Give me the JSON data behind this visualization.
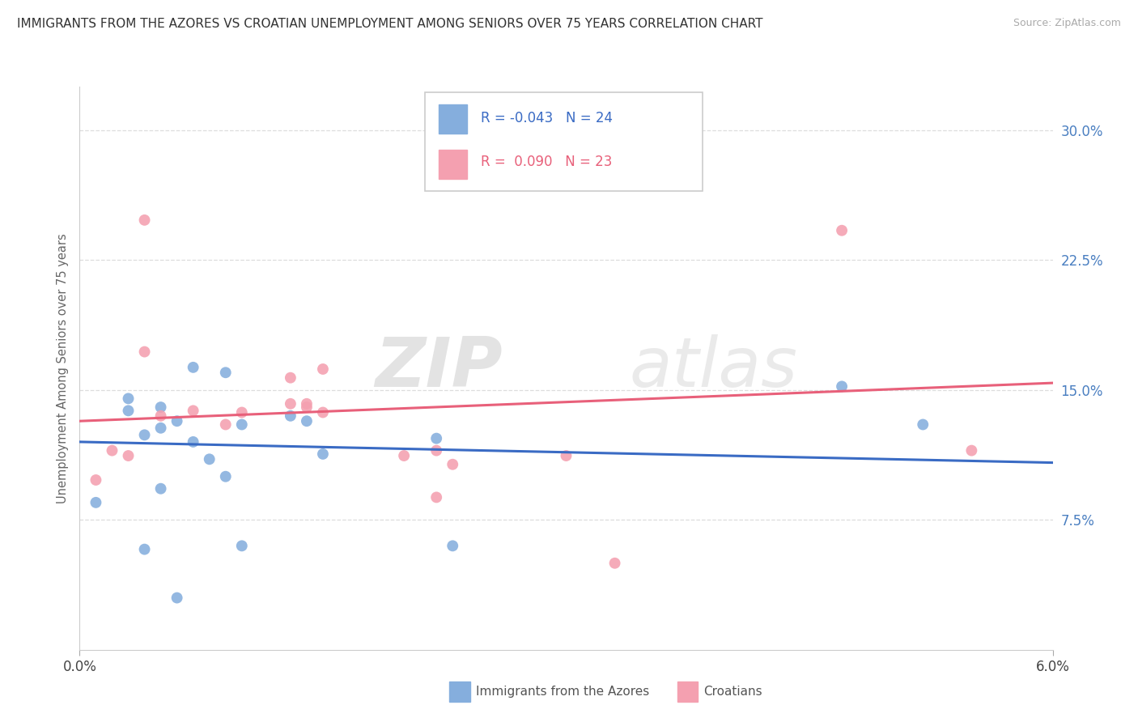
{
  "title": "IMMIGRANTS FROM THE AZORES VS CROATIAN UNEMPLOYMENT AMONG SENIORS OVER 75 YEARS CORRELATION CHART",
  "source": "Source: ZipAtlas.com",
  "ylabel": "Unemployment Among Seniors over 75 years",
  "xlabel_blue": "Immigrants from the Azores",
  "xlabel_pink": "Croatians",
  "watermark_zip": "ZIP",
  "watermark_atlas": "atlas",
  "legend_blue_R": "-0.043",
  "legend_blue_N": "24",
  "legend_pink_R": " 0.090",
  "legend_pink_N": "23",
  "blue_scatter_color": "#85AEDD",
  "pink_scatter_color": "#F4A0B0",
  "blue_line_color": "#3A6BC4",
  "pink_line_color": "#E8607A",
  "ytick_color": "#4A7FC1",
  "xmin": 0.0,
  "xmax": 0.06,
  "ymin": 0.0,
  "ymax": 0.325,
  "yticks": [
    0.075,
    0.15,
    0.225,
    0.3
  ],
  "ytick_labels": [
    "7.5%",
    "15.0%",
    "22.5%",
    "30.0%"
  ],
  "xtick_labels": [
    "0.0%",
    "6.0%"
  ],
  "blue_scatter_x": [
    0.001,
    0.003,
    0.003,
    0.004,
    0.004,
    0.005,
    0.005,
    0.005,
    0.006,
    0.006,
    0.007,
    0.007,
    0.008,
    0.009,
    0.009,
    0.01,
    0.01,
    0.013,
    0.014,
    0.015,
    0.022,
    0.023,
    0.047,
    0.052
  ],
  "blue_scatter_y": [
    0.085,
    0.138,
    0.145,
    0.058,
    0.124,
    0.14,
    0.093,
    0.128,
    0.03,
    0.132,
    0.163,
    0.12,
    0.11,
    0.1,
    0.16,
    0.06,
    0.13,
    0.135,
    0.132,
    0.113,
    0.122,
    0.06,
    0.152,
    0.13
  ],
  "pink_scatter_x": [
    0.001,
    0.002,
    0.003,
    0.004,
    0.004,
    0.005,
    0.007,
    0.009,
    0.01,
    0.013,
    0.013,
    0.014,
    0.014,
    0.015,
    0.015,
    0.02,
    0.022,
    0.022,
    0.023,
    0.03,
    0.033,
    0.047,
    0.055
  ],
  "pink_scatter_y": [
    0.098,
    0.115,
    0.112,
    0.248,
    0.172,
    0.135,
    0.138,
    0.13,
    0.137,
    0.142,
    0.157,
    0.142,
    0.14,
    0.162,
    0.137,
    0.112,
    0.115,
    0.088,
    0.107,
    0.112,
    0.05,
    0.242,
    0.115
  ],
  "blue_trend_x": [
    0.0,
    0.06
  ],
  "blue_trend_y": [
    0.12,
    0.108
  ],
  "pink_trend_x": [
    0.0,
    0.06
  ],
  "pink_trend_y": [
    0.132,
    0.154
  ],
  "bg_color": "#FFFFFF",
  "grid_color": "#DDDDDD",
  "grid_style": "--"
}
